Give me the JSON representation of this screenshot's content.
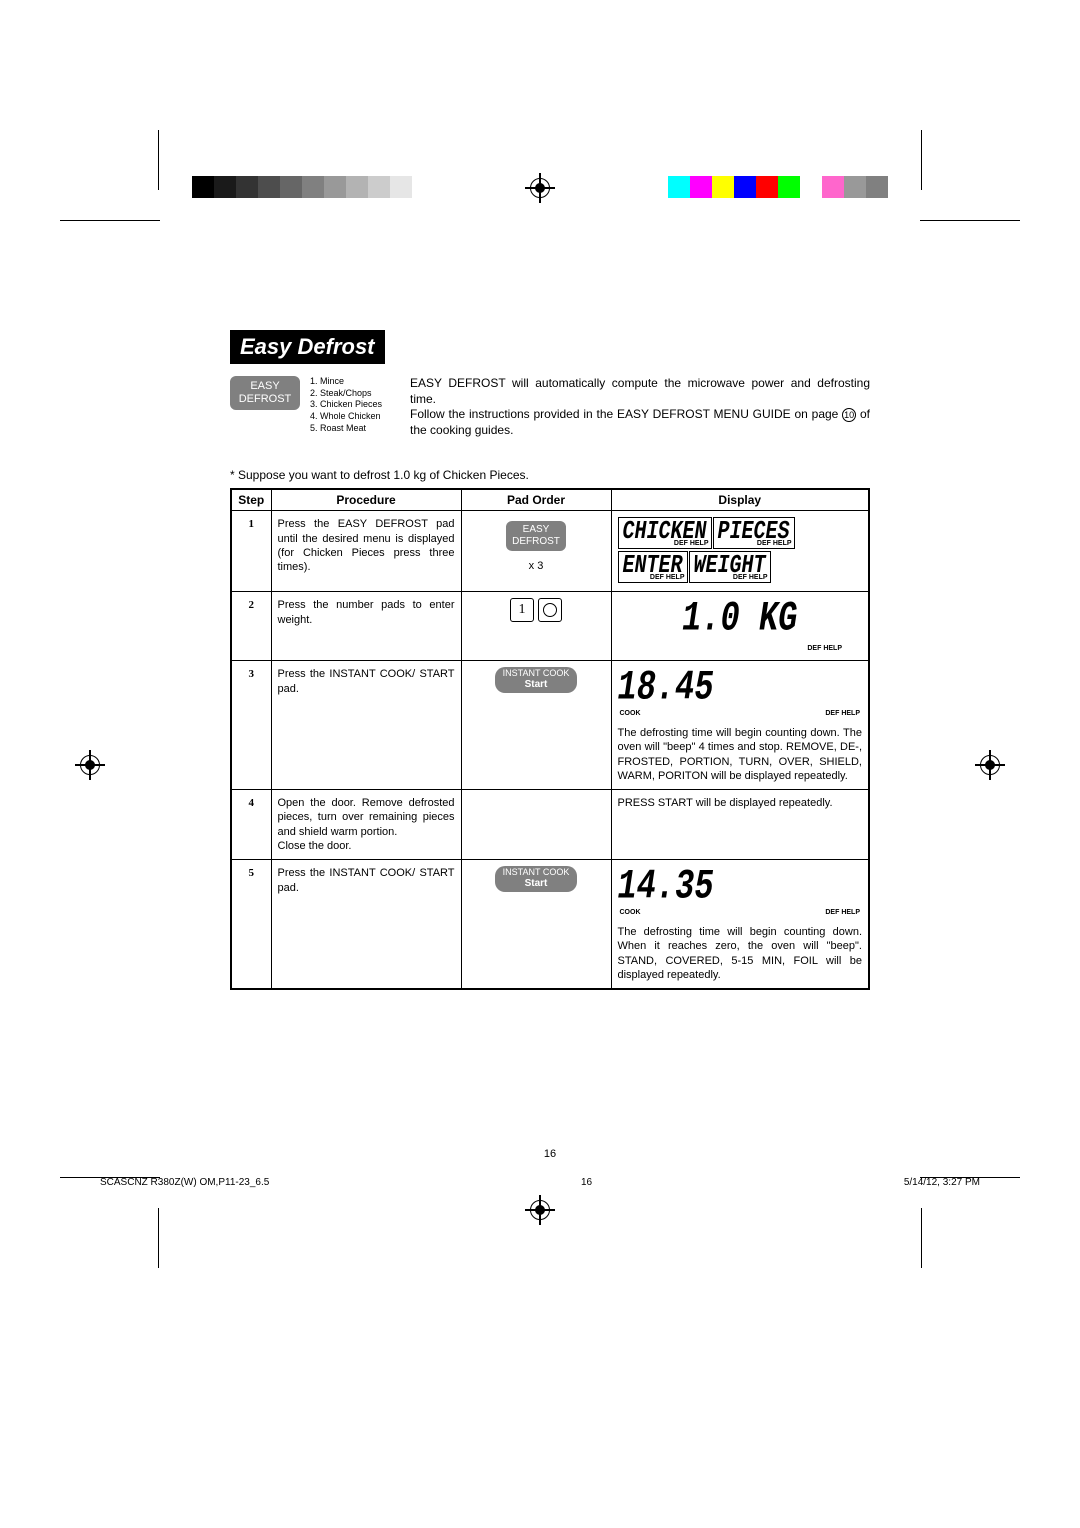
{
  "title": "Easy Defrost",
  "easyDefrostLabel": "EASY\nDEFROST",
  "menuItems": "1. Mince\n2. Steak/Chops\n3. Chicken Pieces\n4. Whole Chicken\n5. Roast Meat",
  "intro1": "EASY DEFROST will automatically compute the microwave power and defrosting time.",
  "intro2a": "Follow the instructions provided in the EASY DEFROST MENU GUIDE on page ",
  "intro2ref": "10",
  "intro2b": " of the cooking guides.",
  "suppose": "* Suppose you want to defrost 1.0 kg of Chicken Pieces.",
  "headers": {
    "step": "Step",
    "procedure": "Procedure",
    "padOrder": "Pad Order",
    "display": "Display"
  },
  "steps": [
    {
      "num": "1",
      "procedure": "Press the EASY DEFROST pad until the desired menu is displayed (for Chicken Pieces press three times).",
      "padLabel": "EASY\nDEFROST",
      "padExtra": "x 3",
      "displayType": "boxes",
      "box1": "CHICKEN",
      "box2": "PIECES",
      "box3": "ENTER",
      "box4": "WEIGHT"
    },
    {
      "num": "2",
      "procedure": "Press the number pads to enter weight.",
      "padType": "keys",
      "displayType": "big",
      "bigSeg": "1.0 KG",
      "defHelp": "DEF HELP"
    },
    {
      "num": "3",
      "procedure": "Press the INSTANT COOK/ START pad.",
      "padType": "instant",
      "instant1": "INSTANT COOK",
      "instant2": "Start",
      "displayType": "time",
      "timeSeg": "18.45",
      "cookLbl": "COOK",
      "defHelp": "DEF HELP",
      "note": "The defrosting time will begin counting down. The oven will \"beep\" 4 times and stop. REMOVE, DE-, FROSTED, PORTION, TURN, OVER, SHIELD, WARM, PORITON will be displayed repeatedly."
    },
    {
      "num": "4",
      "procedure": "Open the door. Remove defrosted pieces, turn over remaining pieces and shield warm portion.\nClose the door.",
      "padType": "none",
      "displayType": "text",
      "note": "PRESS START will be displayed repeatedly."
    },
    {
      "num": "5",
      "procedure": "Press the INSTANT COOK/ START pad.",
      "padType": "instant",
      "instant1": "INSTANT COOK",
      "instant2": "Start",
      "displayType": "time",
      "timeSeg": "14.35",
      "cookLbl": "COOK",
      "defHelp": "DEF HELP",
      "note": "The defrosting time will begin counting down. When it reaches zero, the oven will \"beep\". STAND, COVERED, 5-15 MIN, FOIL will be displayed repeatedly."
    }
  ],
  "pageNum": "16",
  "footerLeft": "SCASCNZ R380Z(W) OM,P11-23_6.5",
  "footerMid": "16",
  "footerRight": "5/14/12, 3:27 PM",
  "grayBars": [
    "#000000",
    "#1a1a1a",
    "#333333",
    "#4d4d4d",
    "#666666",
    "#808080",
    "#999999",
    "#b3b3b3",
    "#cccccc",
    "#e6e6e6",
    "#ffffff"
  ],
  "colorBars": [
    "#00ffff",
    "#ff00ff",
    "#ffff00",
    "#0000ff",
    "#ff0000",
    "#00ff00",
    "#ffffff",
    "#ff66cc",
    "#999999",
    "#808080"
  ]
}
